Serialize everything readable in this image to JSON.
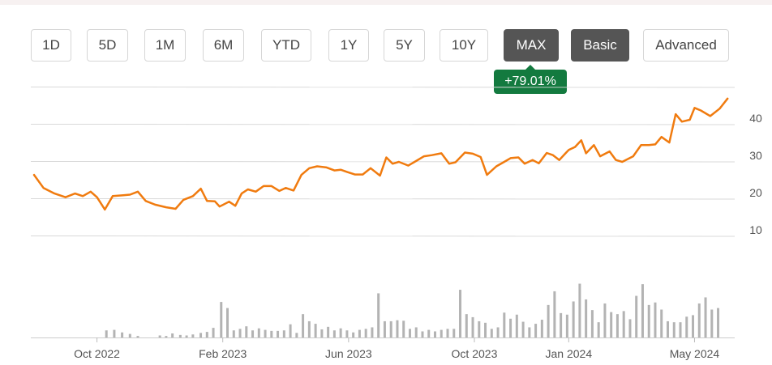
{
  "range_buttons": [
    {
      "label": "1D",
      "active": false
    },
    {
      "label": "5D",
      "active": false
    },
    {
      "label": "1M",
      "active": false
    },
    {
      "label": "6M",
      "active": false
    },
    {
      "label": "YTD",
      "active": false
    },
    {
      "label": "1Y",
      "active": false
    },
    {
      "label": "5Y",
      "active": false
    },
    {
      "label": "10Y",
      "active": false
    },
    {
      "label": "MAX",
      "active": true
    }
  ],
  "mode_buttons": [
    {
      "label": "Basic",
      "active": true
    },
    {
      "label": "Advanced",
      "active": false
    }
  ],
  "change_badge": "+79.01%",
  "colors": {
    "line": "#f07b0f",
    "volume": "#b3b3b3",
    "badge": "#137a3f",
    "active_button": "#555555"
  },
  "chart_data": {
    "type": "line",
    "x_unit": "months since Aug 2022",
    "x_tick_labels": [
      "Oct 2022",
      "Feb 2023",
      "Jun 2023",
      "Oct 2023",
      "Jan 2024",
      "May 2024"
    ],
    "x_tick_values": [
      2,
      6,
      10,
      14,
      17,
      21
    ],
    "y_ticks": [
      10,
      20,
      30,
      40
    ],
    "ylim": [
      0,
      50
    ],
    "xlim": [
      0,
      22.2
    ],
    "price": {
      "x": [
        0,
        0.3,
        0.65,
        1.0,
        1.3,
        1.55,
        1.8,
        2.0,
        2.25,
        2.5,
        2.8,
        3.05,
        3.3,
        3.55,
        3.85,
        4.2,
        4.5,
        4.75,
        5.05,
        5.3,
        5.5,
        5.75,
        5.9,
        6.2,
        6.4,
        6.6,
        6.8,
        7.05,
        7.3,
        7.55,
        7.8,
        8.0,
        8.25,
        8.5,
        8.75,
        9.0,
        9.3,
        9.55,
        9.75,
        9.95,
        10.2,
        10.45,
        10.7,
        11.0,
        11.2,
        11.4,
        11.6,
        11.9,
        12.1,
        12.4,
        12.65,
        12.95,
        13.2,
        13.4,
        13.7,
        13.95,
        14.2,
        14.4,
        14.7,
        14.95,
        15.15,
        15.4,
        15.6,
        15.85,
        16.05,
        16.3,
        16.5,
        16.7,
        16.9,
        17.0,
        17.2,
        17.4,
        17.55,
        17.8,
        18.0,
        18.3,
        18.5,
        18.7,
        19.05,
        19.3,
        19.55,
        19.75,
        19.95,
        20.2,
        20.4,
        20.6,
        20.85,
        21.0,
        21.2,
        21.5,
        21.8,
        22.05
      ],
      "y": [
        26.5,
        23,
        21.5,
        20.5,
        21.5,
        20.8,
        22,
        20.5,
        17.2,
        20.8,
        21,
        21.2,
        22,
        19.5,
        18.5,
        17.8,
        17.4,
        19.8,
        20.8,
        22.8,
        19.5,
        19.4,
        18,
        19.3,
        18.2,
        21.5,
        22.6,
        22,
        23.5,
        23.5,
        22.2,
        23,
        22.3,
        26.5,
        28.3,
        28.8,
        28.5,
        27.7,
        27.9,
        27.3,
        26.6,
        26.6,
        28.3,
        26.3,
        31.2,
        29.5,
        30,
        29,
        30,
        31.5,
        31.8,
        32.3,
        29.5,
        29.9,
        32.5,
        32.2,
        31.3,
        26.5,
        28.8,
        30,
        31,
        31.2,
        29.5,
        30.5,
        29.6,
        32.4,
        31.8,
        30.5,
        32.3,
        33.2,
        34,
        35.8,
        32.3,
        34.5,
        31.5,
        32.8,
        30.5,
        30,
        31.5,
        34.5,
        34.5,
        34.7,
        36.7,
        35.2,
        42.8,
        40.8,
        41.3,
        44.5,
        43.8,
        42.3,
        44.3,
        47
      ]
    },
    "volume_x": [
      2.3,
      2.55,
      2.8,
      3.05,
      3.3,
      4.0,
      4.2,
      4.4,
      4.65,
      4.85,
      5.05,
      5.3,
      5.5,
      5.7,
      5.95,
      6.15,
      6.35,
      6.55,
      6.75,
      6.95,
      7.15,
      7.35,
      7.55,
      7.75,
      7.95,
      8.15,
      8.35,
      8.55,
      8.75,
      8.95,
      9.15,
      9.35,
      9.55,
      9.75,
      9.95,
      10.15,
      10.35,
      10.55,
      10.75,
      10.95,
      11.15,
      11.35,
      11.55,
      11.75,
      11.95,
      12.15,
      12.35,
      12.55,
      12.75,
      12.95,
      13.15,
      13.35,
      13.55,
      13.75,
      13.95,
      14.15,
      14.35,
      14.55,
      14.75,
      14.95,
      15.15,
      15.35,
      15.55,
      15.75,
      15.95,
      16.15,
      16.35,
      16.55,
      16.75,
      16.95,
      17.15,
      17.35,
      17.55,
      17.75,
      17.95,
      18.15,
      18.35,
      18.55,
      18.75,
      18.95,
      19.15,
      19.35,
      19.55,
      19.75,
      19.95,
      20.15,
      20.35,
      20.55,
      20.75,
      20.95,
      21.15,
      21.35,
      21.55,
      21.75
    ],
    "volume": [
      1.4,
      1.5,
      1.0,
      0.7,
      0.3,
      0.4,
      0.3,
      0.8,
      0.5,
      0.4,
      0.6,
      0.9,
      1.1,
      1.9,
      7.0,
      5.8,
      1.4,
      1.7,
      2.2,
      1.4,
      1.8,
      1.5,
      1.3,
      1.3,
      1.4,
      2.6,
      0.9,
      4.6,
      3.2,
      2.7,
      1.6,
      2.1,
      1.4,
      1.8,
      1.4,
      1.0,
      1.5,
      1.7,
      2.0,
      8.7,
      3.2,
      3.2,
      3.4,
      3.3,
      1.7,
      2.0,
      1.2,
      1.5,
      1.2,
      1.5,
      1.7,
      1.7,
      9.4,
      4.6,
      4.0,
      3.2,
      2.9,
      1.7,
      2.0,
      4.9,
      3.7,
      4.5,
      3.1,
      2.0,
      2.7,
      3.5,
      6.4,
      9.1,
      4.8,
      4.5,
      7.1,
      10.6,
      7.5,
      5.4,
      3.0,
      6.7,
      5.0,
      4.6,
      5.2,
      3.6,
      8.2,
      10.5,
      6.4,
      6.9,
      5.5,
      3.2,
      3.0,
      3.0,
      4.1,
      4.4,
      6.7,
      7.9,
      5.5,
      5.8
    ]
  }
}
